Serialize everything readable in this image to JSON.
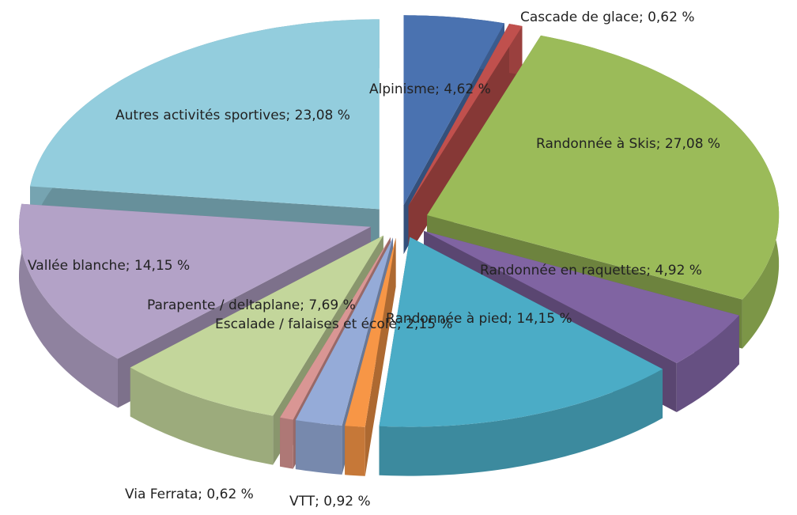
{
  "chart_data": {
    "type": "pie",
    "values": [
      4.62,
      0.62,
      27.08,
      4.92,
      14.15,
      0.92,
      2.15,
      0.62,
      7.69,
      14.15,
      23.08
    ],
    "value_labels": [
      "Alpinisme; 4,62 %",
      "Cascade de glace; 0,62 %",
      "Randonnée à Skis; 27,08 %",
      "Randonnée en raquettes; 4,92 %",
      "Randonnée à pied; 14,15 %",
      "VTT; 0,92 %",
      "Escalade / falaises et école; 2,15 %",
      "Via Ferrata; 0,62 %",
      "Parapente / deltaplane; 7,69 %",
      "Vallée blanche; 14,15 %",
      "Autres activités sportives; 23,08 %"
    ],
    "colors": [
      "#4a72b0",
      "#c0504d",
      "#9bbb59",
      "#8064a2",
      "#4bacc6",
      "#f79646",
      "#95abd8",
      "#d99694",
      "#c3d69b",
      "#b3a2c7",
      "#93cddd"
    ]
  }
}
